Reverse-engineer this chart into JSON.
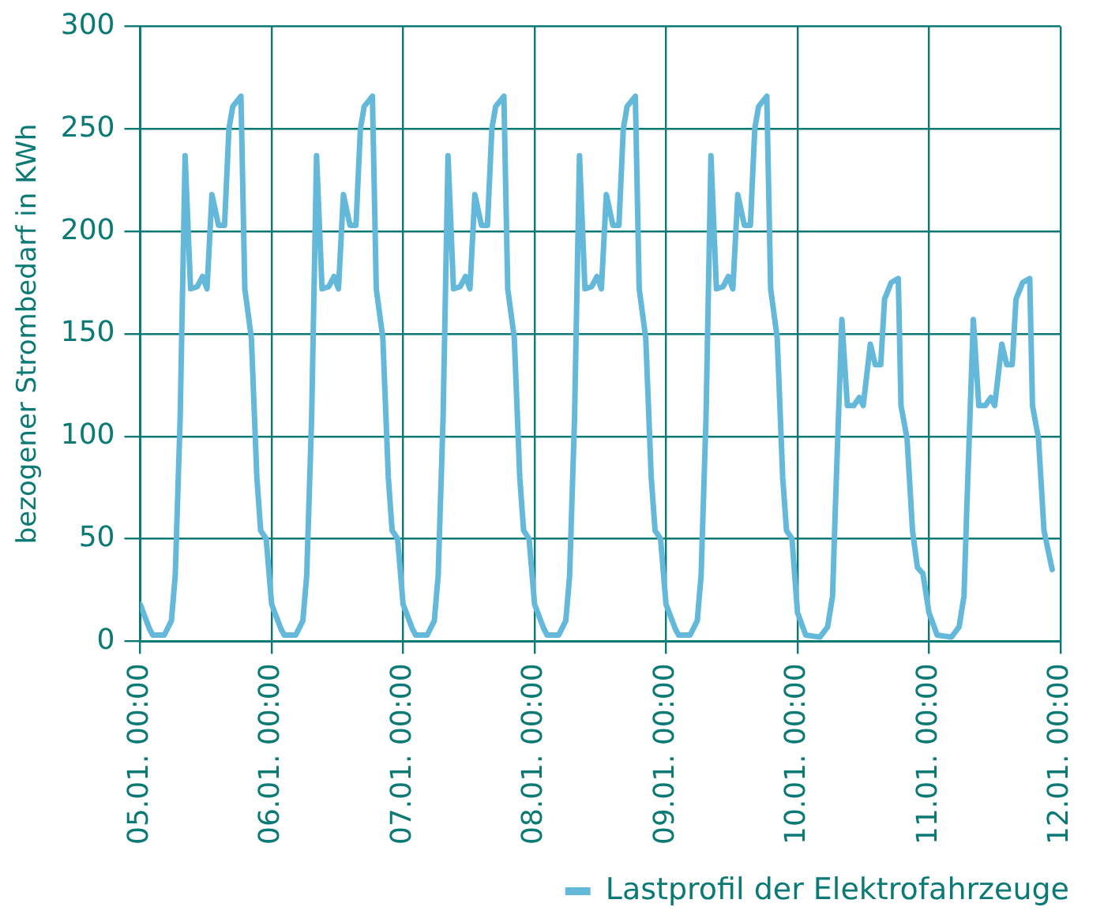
{
  "chart_data": {
    "type": "line",
    "ylabel": "bezogener Strombedarf in KWh",
    "xlim": [
      "--01-05T00:00",
      "--01-12T00:00"
    ],
    "xticks": [
      {
        "value": "--01-05T00:00",
        "label": "05.01. 00:00"
      },
      {
        "value": "--01-06T00:00",
        "label": "06.01. 00:00"
      },
      {
        "value": "--01-07T00:00",
        "label": "07.01. 00:00"
      },
      {
        "value": "--01-08T00:00",
        "label": "08.01. 00:00"
      },
      {
        "value": "--01-09T00:00",
        "label": "09.01. 00:00"
      },
      {
        "value": "--01-10T00:00",
        "label": "10.01. 00:00"
      },
      {
        "value": "--01-11T00:00",
        "label": "11.01. 00:00"
      },
      {
        "value": "--01-12T00:00",
        "label": "12.01. 00:00"
      }
    ],
    "ylim": [
      0,
      300
    ],
    "yticks": [
      0,
      50,
      100,
      150,
      200,
      250,
      300
    ],
    "grid": true,
    "legend": "bottom right",
    "marker": "none",
    "line_style": "solid",
    "series": [
      {
        "name": "Lastprofil der Elektrofahrzeuge",
        "color": "#64b9db",
        "x": [
          "--01-05T00:00",
          "--01-05T01:42",
          "--01-05T02:18",
          "--01-05T04:24",
          "--01-05T05:42",
          "--01-05T06:24",
          "--01-05T07:18",
          "--01-05T08:12",
          "--01-05T09:12",
          "--01-05T10:24",
          "--01-05T11:24",
          "--01-05T12:12",
          "--01-05T13:06",
          "--01-05T14:18",
          "--01-05T15:24",
          "--01-05T16:12",
          "--01-05T16:54",
          "--01-05T18:24",
          "--01-05T19:06",
          "--01-05T20:18",
          "--01-05T21:18",
          "--01-05T22:00",
          "--01-05T23:00",
          "--01-06T00:00",
          "--01-06T01:42",
          "--01-06T02:18",
          "--01-06T04:24",
          "--01-06T05:42",
          "--01-06T06:24",
          "--01-06T07:18",
          "--01-06T08:12",
          "--01-06T09:12",
          "--01-06T10:24",
          "--01-06T11:24",
          "--01-06T12:12",
          "--01-06T13:06",
          "--01-06T14:18",
          "--01-06T15:24",
          "--01-06T16:12",
          "--01-06T16:54",
          "--01-06T18:24",
          "--01-06T19:06",
          "--01-06T20:18",
          "--01-06T21:18",
          "--01-06T22:00",
          "--01-06T23:00",
          "--01-07T00:00",
          "--01-07T01:42",
          "--01-07T02:18",
          "--01-07T04:24",
          "--01-07T05:42",
          "--01-07T06:24",
          "--01-07T07:18",
          "--01-07T08:12",
          "--01-07T09:12",
          "--01-07T10:24",
          "--01-07T11:24",
          "--01-07T12:12",
          "--01-07T13:06",
          "--01-07T14:18",
          "--01-07T15:24",
          "--01-07T16:12",
          "--01-07T16:54",
          "--01-07T18:24",
          "--01-07T19:06",
          "--01-07T20:18",
          "--01-07T21:18",
          "--01-07T22:00",
          "--01-07T23:00",
          "--01-08T00:00",
          "--01-08T01:42",
          "--01-08T02:18",
          "--01-08T04:24",
          "--01-08T05:42",
          "--01-08T06:24",
          "--01-08T07:18",
          "--01-08T08:12",
          "--01-08T09:12",
          "--01-08T10:24",
          "--01-08T11:24",
          "--01-08T12:12",
          "--01-08T13:06",
          "--01-08T14:18",
          "--01-08T15:24",
          "--01-08T16:12",
          "--01-08T16:54",
          "--01-08T18:24",
          "--01-08T19:06",
          "--01-08T20:18",
          "--01-08T21:18",
          "--01-08T22:00",
          "--01-08T23:00",
          "--01-09T00:00",
          "--01-09T01:42",
          "--01-09T02:18",
          "--01-09T04:24",
          "--01-09T05:42",
          "--01-09T06:24",
          "--01-09T07:18",
          "--01-09T08:12",
          "--01-09T09:12",
          "--01-09T10:24",
          "--01-09T11:24",
          "--01-09T12:12",
          "--01-09T13:06",
          "--01-09T14:18",
          "--01-09T15:24",
          "--01-09T16:12",
          "--01-09T16:54",
          "--01-09T18:24",
          "--01-09T19:06",
          "--01-09T20:18",
          "--01-09T21:18",
          "--01-09T22:00",
          "--01-09T23:00",
          "--01-10T00:00",
          "--01-10T01:30",
          "--01-10T04:06",
          "--01-10T05:30",
          "--01-10T06:24",
          "--01-10T07:00",
          "--01-10T08:06",
          "--01-10T09:06",
          "--01-10T10:18",
          "--01-10T11:18",
          "--01-10T12:00",
          "--01-10T13:18",
          "--01-10T14:12",
          "--01-10T15:12",
          "--01-10T15:54",
          "--01-10T17:06",
          "--01-10T18:24",
          "--01-10T18:54",
          "--01-10T20:00",
          "--01-10T21:00",
          "--01-10T21:54",
          "--01-10T22:54",
          "--01-11T00:00",
          "--01-11T01:30",
          "--01-11T04:06",
          "--01-11T05:30",
          "--01-11T06:24",
          "--01-11T07:00",
          "--01-11T08:06",
          "--01-11T09:06",
          "--01-11T10:18",
          "--01-11T11:18",
          "--01-11T12:00",
          "--01-11T13:18",
          "--01-11T14:12",
          "--01-11T15:12",
          "--01-11T15:54",
          "--01-11T17:06",
          "--01-11T18:24",
          "--01-11T18:54",
          "--01-11T20:00",
          "--01-11T21:00",
          "--01-11T22:30"
        ],
        "values": [
          18,
          6,
          3,
          3,
          10,
          32,
          109,
          237,
          172,
          173,
          178,
          172,
          218,
          203,
          203,
          250,
          261,
          266,
          172,
          148,
          80,
          54,
          50,
          18,
          6,
          3,
          3,
          10,
          32,
          109,
          237,
          172,
          173,
          178,
          172,
          218,
          203,
          203,
          250,
          261,
          266,
          172,
          148,
          80,
          54,
          50,
          18,
          6,
          3,
          3,
          10,
          32,
          109,
          237,
          172,
          173,
          178,
          172,
          218,
          203,
          203,
          250,
          261,
          266,
          172,
          148,
          80,
          54,
          50,
          18,
          6,
          3,
          3,
          10,
          32,
          109,
          237,
          172,
          173,
          178,
          172,
          218,
          203,
          203,
          250,
          261,
          266,
          172,
          148,
          80,
          54,
          50,
          18,
          6,
          3,
          3,
          10,
          32,
          109,
          237,
          172,
          173,
          178,
          172,
          218,
          203,
          203,
          250,
          261,
          266,
          172,
          148,
          80,
          54,
          50,
          14,
          3,
          2,
          7,
          22,
          72,
          157,
          115,
          115,
          119,
          115,
          145,
          135,
          135,
          167,
          175,
          177,
          115,
          99,
          54,
          36,
          33,
          14,
          3,
          2,
          7,
          22,
          72,
          157,
          115,
          115,
          119,
          115,
          145,
          135,
          135,
          167,
          175,
          177,
          115,
          99,
          54,
          35
        ]
      }
    ]
  }
}
